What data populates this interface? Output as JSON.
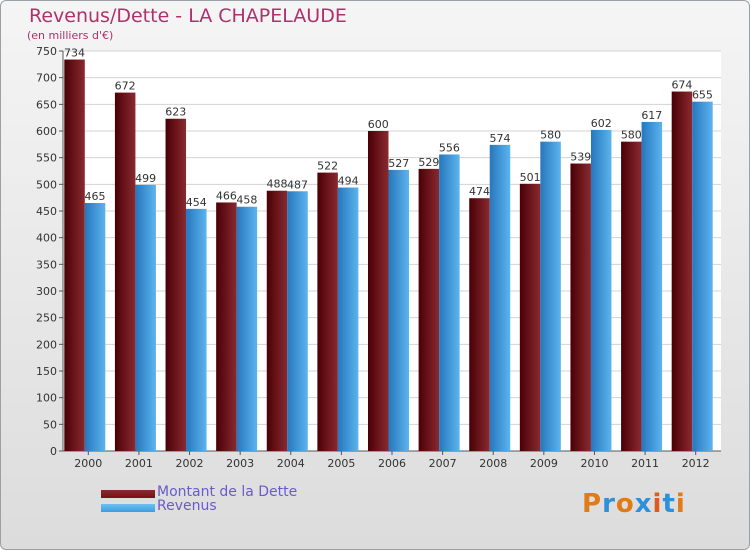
{
  "chart_data": {
    "type": "bar",
    "title": "Revenus/Dette - LA CHAPELAUDE",
    "subtitle": "(en milliers d'€)",
    "categories": [
      "2000",
      "2001",
      "2002",
      "2003",
      "2004",
      "2005",
      "2006",
      "2007",
      "2008",
      "2009",
      "2010",
      "2011",
      "2012"
    ],
    "series": [
      {
        "name": "Montant de la Dette",
        "color": "#7a0f18",
        "values": [
          734,
          672,
          623,
          466,
          488,
          522,
          600,
          529,
          474,
          501,
          539,
          580,
          674
        ]
      },
      {
        "name": "Revenus",
        "color": "#3c9ee0",
        "values": [
          465,
          499,
          454,
          458,
          487,
          494,
          527,
          556,
          574,
          580,
          602,
          617,
          655
        ]
      }
    ],
    "ylim": [
      0,
      750
    ],
    "yticks": [
      0,
      50,
      100,
      150,
      200,
      250,
      300,
      350,
      400,
      450,
      500,
      550,
      600,
      650,
      700,
      750
    ],
    "grid": true,
    "legend_position": "bottom-left"
  },
  "logo": {
    "text": "Proxiti",
    "letter_colors": [
      "#e07b1a",
      "#2f8fd8",
      "#e07b1a",
      "#2f8fd8",
      "#e05a1a",
      "#2f8fd8",
      "#e07b1a"
    ]
  }
}
